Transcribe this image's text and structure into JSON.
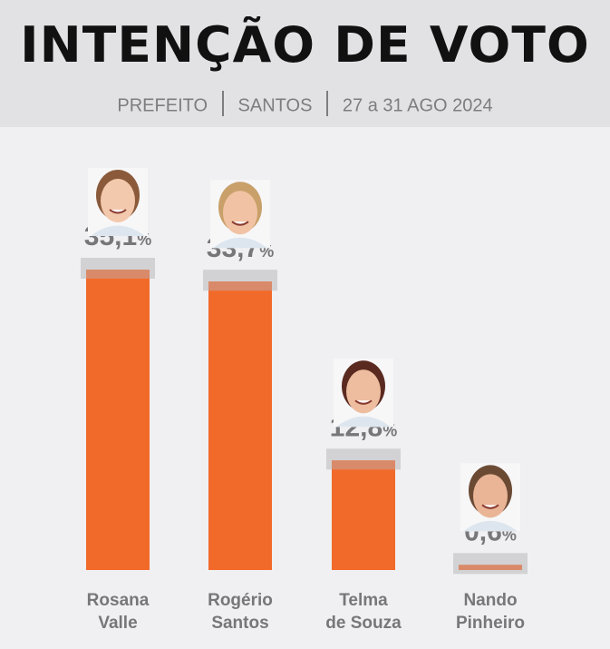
{
  "header": {
    "title": "INTENÇÃO DE VOTO",
    "subtitle": [
      "PREFEITO",
      "SANTOS",
      "27 a 31 AGO 2024"
    ]
  },
  "chart_data": {
    "type": "bar",
    "title": "INTENÇÃO DE VOTO",
    "categories": [
      [
        "Rosana",
        "Valle"
      ],
      [
        "Rogério",
        "Santos"
      ],
      [
        "Telma",
        "de Souza"
      ],
      [
        "Nando",
        "Pinheiro"
      ]
    ],
    "values": [
      35.1,
      33.7,
      12.8,
      0.6
    ],
    "labels": [
      "35,1",
      "33,7",
      "12,8",
      "0,6"
    ],
    "unit": "%",
    "ylim": [
      0,
      36
    ],
    "grid": false,
    "colors": {
      "bar": "#f26a2a",
      "bar_top": "#d98a6a",
      "cap": "#d2d2d4",
      "text": "#77777a"
    }
  }
}
